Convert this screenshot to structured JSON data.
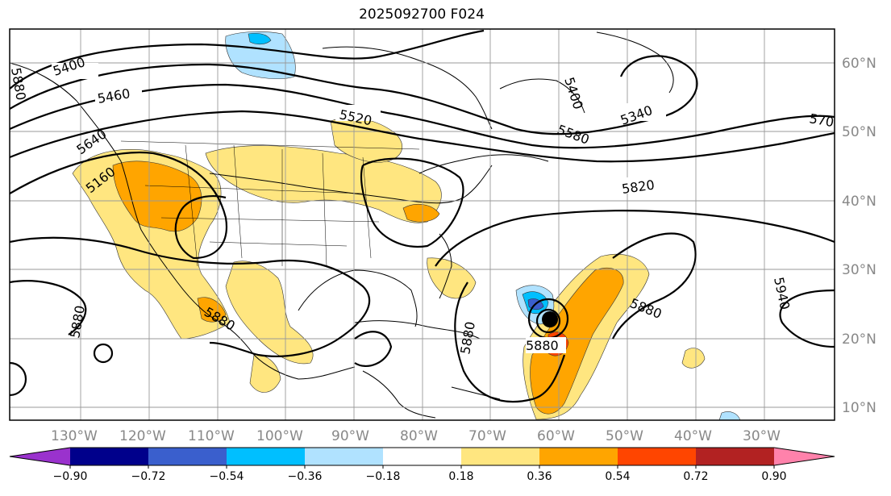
{
  "title": "2025092700 F024",
  "map": {
    "longitude_labels": [
      "130°W",
      "120°W",
      "110°W",
      "100°W",
      "90°W",
      "80°W",
      "70°W",
      "60°W",
      "50°W",
      "40°W",
      "30°W"
    ],
    "latitude_labels": [
      "60°N",
      "50°N",
      "40°N",
      "30°N",
      "20°N",
      "10°N"
    ],
    "contour_labels": [
      "5400",
      "5460",
      "5520",
      "5400",
      "5340",
      "5580",
      "570",
      "5640",
      "5160",
      "5820",
      "5880",
      "5880",
      "5880",
      "5880",
      "5940",
      "5880",
      "5880"
    ],
    "storm_marker": "tropical-cyclone-center"
  },
  "colorbar": {
    "ticks": [
      "−0.90",
      "−0.72",
      "−0.54",
      "−0.36",
      "−0.18",
      "0.18",
      "0.36",
      "0.54",
      "0.72",
      "0.90"
    ],
    "colors": [
      "#9a32cd",
      "#00008b",
      "#3a5fcd",
      "#00bfff",
      "#b0e2ff",
      "#ffffff",
      "#ffe680",
      "#ffa500",
      "#ff4500",
      "#b22222",
      "#ff82ab"
    ]
  }
}
